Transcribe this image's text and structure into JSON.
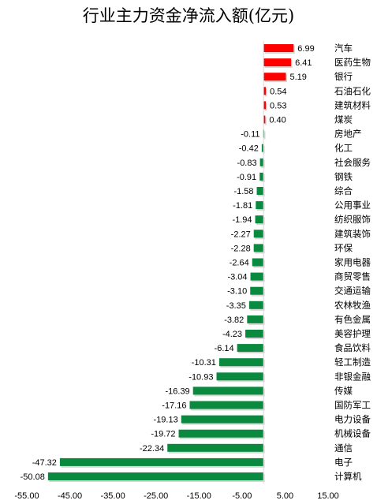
{
  "chart_data": {
    "type": "bar",
    "orientation": "horizontal",
    "title": "行业主力资金净流入额(亿元)",
    "categories": [
      "汽车",
      "医药生物",
      "银行",
      "石油石化",
      "建筑材料",
      "煤炭",
      "房地产",
      "化工",
      "社会服务",
      "钢铁",
      "综合",
      "公用事业",
      "纺织服饰",
      "建筑装饰",
      "环保",
      "家用电器",
      "商贸零售",
      "交通运输",
      "农林牧渔",
      "有色金属",
      "美容护理",
      "食品饮料",
      "轻工制造",
      "非银金融",
      "传媒",
      "国防军工",
      "电力设备",
      "机械设备",
      "通信",
      "电子",
      "计算机"
    ],
    "values": [
      6.99,
      6.41,
      5.19,
      0.54,
      0.53,
      0.4,
      -0.11,
      -0.42,
      -0.83,
      -0.91,
      -1.58,
      -1.81,
      -1.94,
      -2.27,
      -2.28,
      -2.64,
      -3.04,
      -3.1,
      -3.35,
      -3.82,
      -4.23,
      -6.14,
      -10.31,
      -10.93,
      -16.39,
      -17.16,
      -19.13,
      -19.72,
      -22.34,
      -47.32,
      -50.08
    ],
    "value_labels": [
      "6.99",
      "6.41",
      "5.19",
      "0.54",
      "0.53",
      "0.40",
      "-0.11",
      "-0.42",
      "-0.83",
      "-0.91",
      "-1.58",
      "-1.81",
      "-1.94",
      "-2.27",
      "-2.28",
      "-2.64",
      "-3.04",
      "-3.10",
      "-3.35",
      "-3.82",
      "-4.23",
      "-6.14",
      "-10.31",
      "-10.93",
      "-16.39",
      "-17.16",
      "-19.13",
      "-19.72",
      "-22.34",
      "-47.32",
      "-50.08"
    ],
    "xlim": [
      -55,
      15
    ],
    "xticks": [
      -55,
      -45,
      -35,
      -25,
      -15,
      -5,
      5,
      15
    ],
    "xtick_labels": [
      "-55.00",
      "-45.00",
      "-35.00",
      "-25.00",
      "-15.00",
      "-5.00",
      "5.00",
      "15.00"
    ],
    "grid": false,
    "legend": "none",
    "colors": {
      "positive": "#ff0000",
      "negative": "#0a8a3e"
    }
  }
}
